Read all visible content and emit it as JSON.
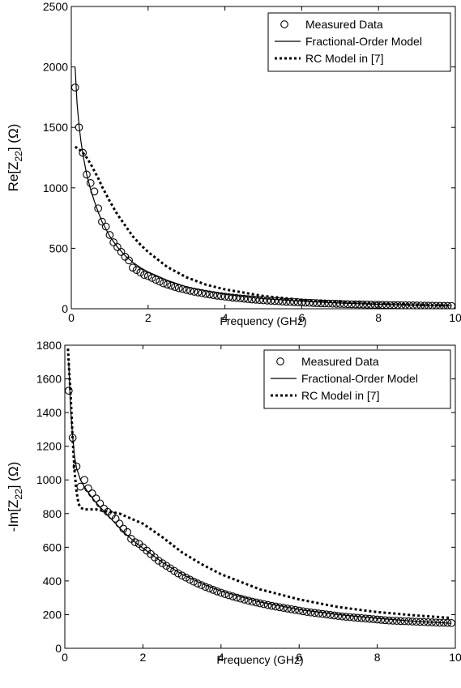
{
  "chart_data": [
    {
      "type": "line",
      "xlabel": "Frequency (GHz)",
      "ylabel": {
        "base": "Re[Z",
        "sub": "22",
        "tail": "] (Ω)"
      },
      "xlim": [
        0,
        10
      ],
      "ylim": [
        0,
        2500
      ],
      "xticks": [
        0,
        2,
        4,
        6,
        8,
        10
      ],
      "yticks": [
        0,
        500,
        1000,
        1500,
        2000,
        2500
      ],
      "grid": false,
      "legend_position": "top-right",
      "series": [
        {
          "name": "Measured Data",
          "style": "circles",
          "x": [
            0.1,
            0.2,
            0.3,
            0.4,
            0.5,
            0.6,
            0.7,
            0.8,
            0.9,
            1.0,
            1.1,
            1.2,
            1.3,
            1.4,
            1.5,
            1.6,
            1.7,
            1.8,
            1.9,
            2.0,
            2.1,
            2.2,
            2.3,
            2.4,
            2.5,
            2.6,
            2.7,
            2.8,
            2.9,
            3.0,
            3.1,
            3.2,
            3.3,
            3.4,
            3.5,
            3.6,
            3.7,
            3.8,
            3.9,
            4.0,
            4.1,
            4.2,
            4.3,
            4.4,
            4.5,
            4.6,
            4.7,
            4.8,
            4.9,
            5.0,
            5.1,
            5.2,
            5.3,
            5.4,
            5.5,
            5.6,
            5.7,
            5.8,
            5.9,
            6.0,
            6.1,
            6.2,
            6.3,
            6.4,
            6.5,
            6.6,
            6.7,
            6.8,
            6.9,
            7.0,
            7.1,
            7.2,
            7.3,
            7.4,
            7.5,
            7.6,
            7.7,
            7.8,
            7.9,
            8.0,
            8.1,
            8.2,
            8.3,
            8.4,
            8.5,
            8.6,
            8.7,
            8.8,
            8.9,
            9.0,
            9.1,
            9.2,
            9.3,
            9.4,
            9.5,
            9.6,
            9.7,
            9.8,
            9.9
          ],
          "y": [
            1830,
            1500,
            1290,
            1110,
            1040,
            970,
            830,
            720,
            680,
            610,
            550,
            510,
            470,
            430,
            400,
            340,
            320,
            300,
            280,
            270,
            255,
            240,
            225,
            210,
            200,
            190,
            180,
            170,
            163,
            155,
            148,
            141,
            135,
            129,
            123,
            118,
            113,
            108,
            104,
            100,
            96,
            92,
            89,
            86,
            83,
            80,
            77,
            75,
            72,
            70,
            68,
            66,
            64,
            62,
            60,
            58,
            56.5,
            55,
            53.5,
            52,
            50.5,
            49,
            47.5,
            46,
            45,
            44,
            43,
            42,
            41,
            40,
            39,
            38,
            37.3,
            36.6,
            35.9,
            35.2,
            34.5,
            33.8,
            33.1,
            32.5,
            31.9,
            31.3,
            30.7,
            30.1,
            29.5,
            28.9,
            28.4,
            27.9,
            27.4,
            26.9,
            26.4,
            25.9,
            25.4,
            24.9,
            24.5,
            24.1,
            23.7,
            23.3,
            23
          ]
        },
        {
          "name": "Fractional-Order Model",
          "style": "solid",
          "x": [
            0.1,
            0.15,
            0.2,
            0.25,
            0.3,
            0.4,
            0.5,
            0.6,
            0.7,
            0.8,
            0.9,
            1.0,
            1.2,
            1.4,
            1.6,
            1.8,
            2.0,
            2.5,
            3.0,
            3.5,
            4.0,
            5.0,
            6.0,
            7.0,
            8.0,
            9.0,
            9.9
          ],
          "y": [
            2000,
            1700,
            1520,
            1390,
            1280,
            1110,
            990,
            890,
            800,
            720,
            660,
            600,
            510,
            440,
            385,
            340,
            305,
            235,
            180,
            148,
            120,
            84,
            62,
            47,
            37,
            30,
            25
          ]
        },
        {
          "name": "RC Model in [7]",
          "style": "dotted",
          "x": [
            0.1,
            0.2,
            0.3,
            0.4,
            0.5,
            0.6,
            0.7,
            0.8,
            0.9,
            1.0,
            1.2,
            1.4,
            1.6,
            1.8,
            2.0,
            2.5,
            3.0,
            3.5,
            4.0,
            5.0,
            6.0,
            7.0,
            8.0,
            9.0,
            9.9
          ],
          "y": [
            1340,
            1320,
            1290,
            1250,
            1200,
            1140,
            1080,
            1010,
            950,
            890,
            780,
            690,
            600,
            530,
            470,
            345,
            260,
            200,
            160,
            105,
            73,
            54,
            42,
            33,
            27
          ]
        }
      ]
    },
    {
      "type": "line",
      "xlabel": "Frequency (GHz)",
      "ylabel": {
        "base": "-Im[Z",
        "sub": "22",
        "tail": "] (Ω)"
      },
      "xlim": [
        0,
        10
      ],
      "ylim": [
        0,
        1800
      ],
      "xticks": [
        0,
        2,
        4,
        6,
        8,
        10
      ],
      "yticks": [
        0,
        200,
        400,
        600,
        800,
        1000,
        1200,
        1400,
        1600,
        1800
      ],
      "grid": false,
      "legend_position": "top-right",
      "series": [
        {
          "name": "Measured Data",
          "style": "circles",
          "x": [
            0.1,
            0.2,
            0.3,
            0.4,
            0.5,
            0.6,
            0.7,
            0.8,
            0.9,
            1.0,
            1.1,
            1.2,
            1.3,
            1.4,
            1.5,
            1.6,
            1.7,
            1.8,
            1.9,
            2.0,
            2.1,
            2.2,
            2.3,
            2.4,
            2.5,
            2.6,
            2.7,
            2.8,
            2.9,
            3.0,
            3.1,
            3.2,
            3.3,
            3.4,
            3.5,
            3.6,
            3.7,
            3.8,
            3.9,
            4.0,
            4.1,
            4.2,
            4.3,
            4.4,
            4.5,
            4.6,
            4.7,
            4.8,
            4.9,
            5.0,
            5.1,
            5.2,
            5.3,
            5.4,
            5.5,
            5.6,
            5.7,
            5.8,
            5.9,
            6.0,
            6.1,
            6.2,
            6.3,
            6.4,
            6.5,
            6.6,
            6.7,
            6.8,
            6.9,
            7.0,
            7.1,
            7.2,
            7.3,
            7.4,
            7.5,
            7.6,
            7.7,
            7.8,
            7.9,
            8.0,
            8.1,
            8.2,
            8.3,
            8.4,
            8.5,
            8.6,
            8.7,
            8.8,
            8.9,
            9.0,
            9.1,
            9.2,
            9.3,
            9.4,
            9.5,
            9.6,
            9.7,
            9.8,
            9.9
          ],
          "y": [
            1530,
            1250,
            1080,
            960,
            1000,
            950,
            920,
            890,
            860,
            830,
            810,
            790,
            770,
            740,
            710,
            690,
            650,
            630,
            620,
            600,
            580,
            560,
            540,
            520,
            505,
            490,
            475,
            460,
            445,
            432,
            420,
            408,
            396,
            385,
            375,
            365,
            356,
            347,
            338,
            330,
            322,
            315,
            308,
            301,
            295,
            289,
            283,
            277,
            272,
            267,
            262,
            257,
            252,
            248,
            244,
            240,
            236,
            232,
            228,
            224,
            220,
            216,
            213,
            210,
            207,
            204,
            201,
            198,
            195,
            192,
            189,
            187,
            185,
            183,
            181,
            179,
            177,
            175,
            173,
            171,
            169,
            167,
            165,
            164,
            163,
            162,
            161,
            160,
            159,
            158,
            157,
            156,
            155,
            154,
            153,
            152,
            152,
            151,
            150
          ]
        },
        {
          "name": "Fractional-Order Model",
          "style": "solid",
          "x": [
            0.1,
            0.15,
            0.2,
            0.25,
            0.3,
            0.4,
            0.5,
            0.6,
            0.7,
            0.8,
            0.9,
            1.0,
            1.2,
            1.4,
            1.6,
            1.8,
            2.0,
            2.5,
            3.0,
            3.5,
            4.0,
            5.0,
            6.0,
            7.0,
            8.0,
            9.0,
            9.9
          ],
          "y": [
            1700,
            1420,
            1260,
            1140,
            1070,
            1000,
            960,
            925,
            895,
            865,
            840,
            815,
            765,
            715,
            670,
            630,
            595,
            510,
            440,
            385,
            340,
            275,
            230,
            200,
            178,
            160,
            148
          ]
        },
        {
          "name": "RC Model in [7]",
          "style": "dotted",
          "x": [
            0.08,
            0.1,
            0.15,
            0.2,
            0.25,
            0.3,
            0.35,
            0.4,
            0.5,
            0.6,
            0.7,
            0.8,
            0.9,
            1.0,
            1.2,
            1.4,
            1.6,
            1.8,
            2.0,
            2.5,
            3.0,
            3.5,
            4.0,
            5.0,
            6.0,
            7.0,
            8.0,
            9.0,
            9.9
          ],
          "y": [
            1780,
            1700,
            1500,
            1250,
            1050,
            930,
            860,
            835,
            825,
            825,
            825,
            825,
            820,
            815,
            810,
            800,
            780,
            760,
            740,
            660,
            570,
            500,
            440,
            350,
            290,
            245,
            215,
            195,
            180
          ]
        }
      ]
    }
  ]
}
